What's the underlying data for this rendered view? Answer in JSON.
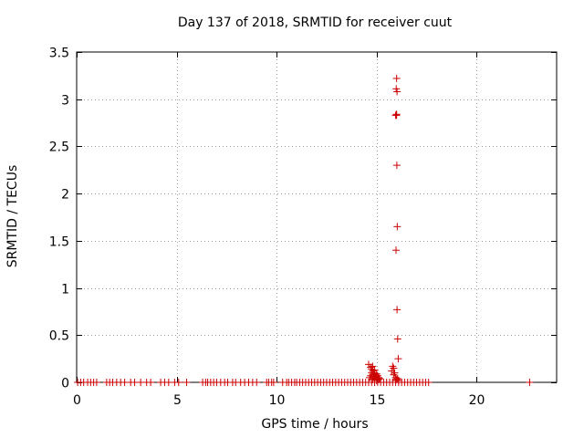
{
  "chart_data": {
    "type": "scatter",
    "title": "Day 137 of 2018, SRMTID for receiver cuut",
    "xlabel": "GPS time / hours",
    "ylabel": "SRMTID / TECUs",
    "xlim": [
      0,
      24
    ],
    "ylim": [
      0,
      3.5
    ],
    "xticks": [
      0,
      5,
      10,
      15,
      20
    ],
    "yticks": [
      0,
      0.5,
      1,
      1.5,
      2,
      2.5,
      3,
      3.5
    ],
    "ytick_labels": [
      "0",
      "0.5",
      "1",
      "1.5",
      "2",
      "2.5",
      "3",
      "3.5"
    ],
    "grid": true,
    "marker": "+",
    "color": "#cc0000",
    "series": [
      {
        "name": "cuut",
        "x": [
          14.6,
          14.7,
          14.75,
          14.8,
          14.8,
          14.85,
          14.9,
          14.9,
          14.95,
          15.0,
          15.05,
          15.1,
          15.15,
          14.65,
          14.7,
          14.8,
          14.9,
          15.0,
          15.1,
          14.75,
          14.85,
          15.8,
          15.85,
          15.9,
          15.95,
          16.0,
          15.75,
          15.85,
          15.95,
          16.05,
          16.1,
          16.0,
          15.98,
          16.02,
          15.95,
          15.99,
          16.0,
          16.01,
          16.03,
          15.97,
          16.02,
          16.05,
          16.08
        ],
        "y": [
          0.19,
          0.16,
          0.14,
          0.12,
          0.17,
          0.1,
          0.08,
          0.13,
          0.06,
          0.09,
          0.07,
          0.05,
          0.04,
          0.05,
          0.07,
          0.03,
          0.04,
          0.02,
          0.03,
          0.1,
          0.06,
          0.17,
          0.15,
          0.1,
          0.05,
          0.03,
          0.12,
          0.08,
          0.02,
          0.04,
          0.02,
          3.22,
          3.11,
          3.08,
          2.83,
          2.83,
          2.84,
          2.3,
          1.65,
          1.4,
          0.77,
          0.46,
          0.25
        ]
      }
    ],
    "zero_x": [
      0.05,
      0.2,
      0.35,
      0.55,
      0.7,
      0.85,
      1.0,
      1.5,
      1.65,
      1.8,
      2.0,
      2.2,
      2.4,
      2.7,
      2.9,
      3.2,
      3.5,
      3.7,
      4.2,
      4.4,
      4.6,
      4.9,
      5.1,
      5.5,
      6.3,
      6.45,
      6.55,
      6.7,
      6.85,
      7.0,
      7.2,
      7.4,
      7.55,
      7.8,
      7.95,
      8.2,
      8.4,
      8.6,
      8.8,
      9.0,
      9.5,
      9.6,
      9.75,
      9.85,
      10.3,
      10.5,
      10.6,
      10.75,
      10.9,
      11.0,
      11.15,
      11.3,
      11.45,
      11.6,
      11.75,
      11.9,
      12.05,
      12.2,
      12.35,
      12.5,
      12.65,
      12.8,
      12.95,
      13.1,
      13.25,
      13.4,
      13.55,
      13.7,
      13.85,
      14.0,
      14.15,
      14.3,
      14.45,
      14.6,
      14.75,
      14.9,
      15.05,
      15.2,
      15.35,
      15.5,
      15.65,
      15.8,
      15.95,
      16.1,
      16.25,
      16.4,
      16.55,
      16.7,
      16.85,
      17.0,
      17.15,
      17.3,
      17.45,
      17.6,
      22.65
    ]
  }
}
